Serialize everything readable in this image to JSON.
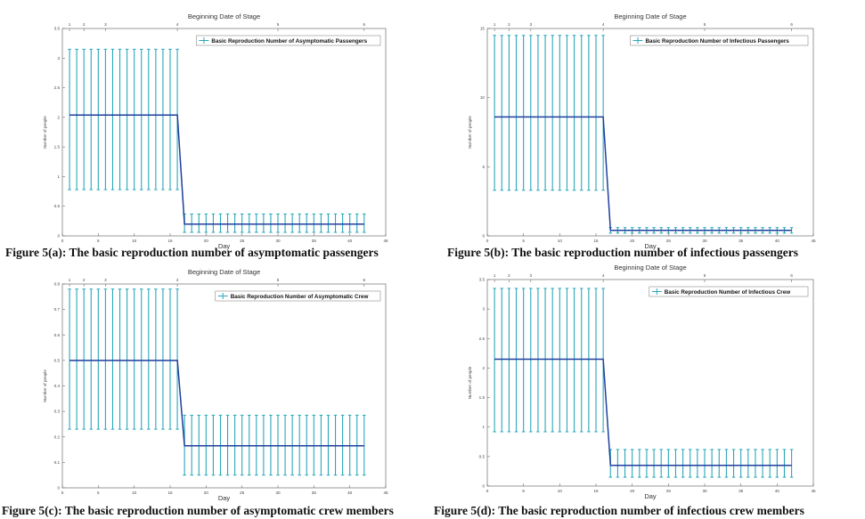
{
  "chart_data": [
    {
      "type": "line",
      "title": "",
      "xlabel": "Day",
      "ylabel": "Number of people",
      "top_axis_label": "Beginning Date of Stage",
      "top_ticks": [
        "1",
        "2",
        "3",
        "4",
        "5",
        "6"
      ],
      "top_tick_days": [
        1,
        3,
        6,
        16,
        30,
        42
      ],
      "xlim": [
        0,
        45
      ],
      "ylim": [
        0,
        3.5
      ],
      "xticks": [
        0,
        5,
        10,
        15,
        20,
        25,
        30,
        35,
        40,
        45
      ],
      "yticks": [
        0,
        0.5,
        1,
        1.5,
        2,
        2.5,
        3,
        3.5
      ],
      "legend": "Basic Reproduction Number of Asymptomatic Passengers",
      "legend_position": "top-right",
      "series": [
        {
          "name": "Basic Reproduction Number of Asymptomatic Passengers",
          "x": [
            1,
            16,
            17,
            42
          ],
          "y": [
            2.04,
            2.04,
            0.2,
            0.2
          ]
        }
      ],
      "errorbar_segments": [
        {
          "x_start": 1,
          "x_end": 16,
          "step": 1,
          "low": 0.78,
          "high": 3.15
        },
        {
          "x_start": 17,
          "x_end": 42,
          "step": 1,
          "low": 0.06,
          "high": 0.37
        }
      ],
      "caption": "Figure 5(a): The basic reproduction number of asymptomatic passengers"
    },
    {
      "type": "line",
      "title": "",
      "xlabel": "Day",
      "ylabel": "Number of people",
      "top_axis_label": "Beginning Date of Stage",
      "top_ticks": [
        "1",
        "2",
        "3",
        "4",
        "5",
        "6"
      ],
      "top_tick_days": [
        1,
        3,
        6,
        16,
        30,
        42
      ],
      "xlim": [
        0,
        45
      ],
      "ylim": [
        0,
        15
      ],
      "xticks": [
        0,
        5,
        10,
        15,
        20,
        25,
        30,
        35,
        40,
        45
      ],
      "yticks": [
        0,
        5,
        10,
        15
      ],
      "legend": "Basic Reproduction Number of Infectious Passengers",
      "legend_position": "top-right",
      "series": [
        {
          "name": "Basic Reproduction Number of Infectious Passengers",
          "x": [
            1,
            16,
            17,
            42
          ],
          "y": [
            8.6,
            8.6,
            0.4,
            0.4
          ]
        }
      ],
      "errorbar_segments": [
        {
          "x_start": 1,
          "x_end": 16,
          "step": 1,
          "low": 3.3,
          "high": 14.5
        },
        {
          "x_start": 17,
          "x_end": 42,
          "step": 1,
          "low": 0.2,
          "high": 0.6
        }
      ],
      "caption": "Figure 5(b): The basic reproduction number of infectious passengers"
    },
    {
      "type": "line",
      "title": "",
      "xlabel": "Day",
      "ylabel": "Number of people",
      "top_axis_label": "Beginning Date of Stage",
      "top_ticks": [
        "1",
        "2",
        "3",
        "4",
        "5",
        "6"
      ],
      "top_tick_days": [
        1,
        3,
        6,
        16,
        30,
        42
      ],
      "xlim": [
        0,
        45
      ],
      "ylim": [
        0,
        0.8
      ],
      "xticks": [
        0,
        5,
        10,
        15,
        20,
        25,
        30,
        35,
        40,
        45
      ],
      "yticks": [
        0,
        0.1,
        0.2,
        0.3,
        0.4,
        0.5,
        0.6,
        0.7,
        0.8
      ],
      "legend": "Basic Reproduction Number of Asymptomatic Crew",
      "legend_position": "top-right",
      "series": [
        {
          "name": "Basic Reproduction Number of Asymptomatic Crew",
          "x": [
            1,
            16,
            17,
            42
          ],
          "y": [
            0.5,
            0.5,
            0.165,
            0.165
          ]
        }
      ],
      "errorbar_segments": [
        {
          "x_start": 1,
          "x_end": 16,
          "step": 1,
          "low": 0.23,
          "high": 0.78
        },
        {
          "x_start": 17,
          "x_end": 42,
          "step": 1,
          "low": 0.05,
          "high": 0.285
        }
      ],
      "caption": "Figure 5(c): The basic reproduction number of asymptomatic crew members"
    },
    {
      "type": "line",
      "title": "",
      "xlabel": "Day",
      "ylabel": "Number of people",
      "top_axis_label": "Beginning Date of Stage",
      "top_ticks": [
        "1",
        "2",
        "3",
        "4",
        "5",
        "6"
      ],
      "top_tick_days": [
        1,
        3,
        6,
        16,
        30,
        42
      ],
      "xlim": [
        0,
        45
      ],
      "ylim": [
        0,
        3.5
      ],
      "xticks": [
        0,
        5,
        10,
        15,
        20,
        25,
        30,
        35,
        40,
        45
      ],
      "yticks": [
        0,
        0.5,
        1,
        1.5,
        2,
        2.5,
        3,
        3.5
      ],
      "legend": "Basic Reproduction Number of Infectious Crew",
      "legend_position": "top-right",
      "series": [
        {
          "name": "Basic Reproduction Number of Infectious Crew",
          "x": [
            1,
            16,
            17,
            42
          ],
          "y": [
            2.15,
            2.15,
            0.35,
            0.35
          ]
        }
      ],
      "errorbar_segments": [
        {
          "x_start": 1,
          "x_end": 16,
          "step": 1,
          "low": 0.92,
          "high": 3.35
        },
        {
          "x_start": 17,
          "x_end": 42,
          "step": 1,
          "low": 0.15,
          "high": 0.62
        }
      ],
      "caption": "Figure 5(d): The basic reproduction number of infectious crew members"
    }
  ],
  "colors": {
    "errorbar": "#2aa7b8",
    "line": "#1f3f9e",
    "axis": "#6d6d6d"
  }
}
